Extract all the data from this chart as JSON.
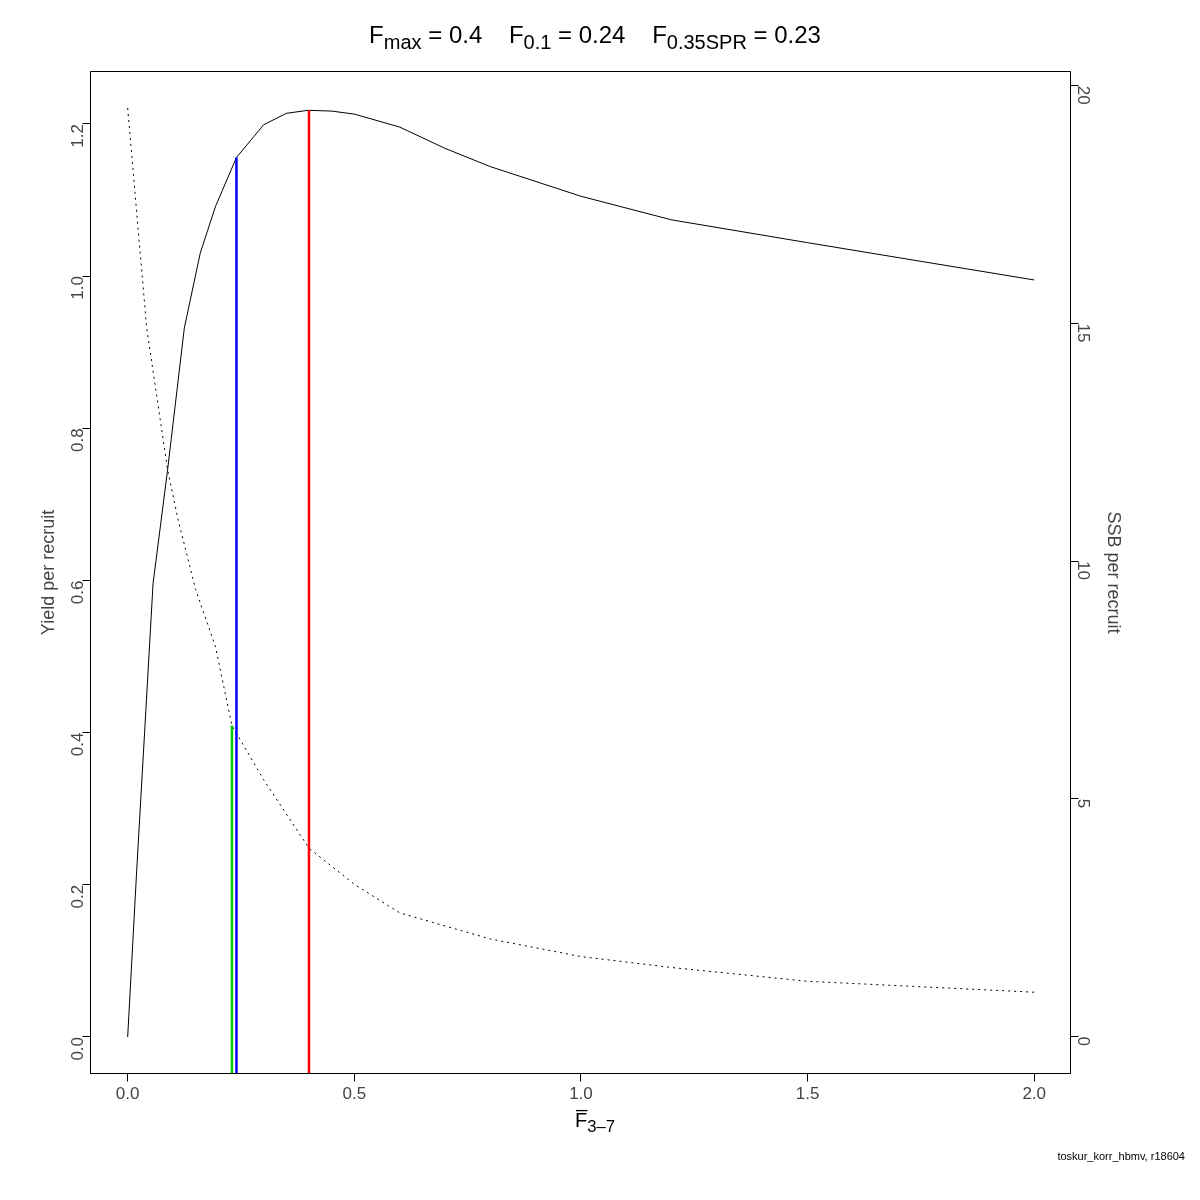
{
  "chart_data": {
    "type": "line",
    "title": "F$_{max}$ = 0.4     F$_{0.1}$ = 0.24     F$_{0.35SPR}$ = 0.23",
    "xlabel": "F̅$_{3–7}$",
    "ylabel": "Yield per recruit",
    "y2label": "SSB per recruit",
    "annotations": [
      "toskur_korr_hbmv, r18604"
    ],
    "xlim": [
      -0.082,
      2.08
    ],
    "xticks": [
      {
        "value": 0,
        "label": "0.0"
      },
      0.5,
      {
        "value": 1,
        "label": "1.0"
      },
      1.5,
      {
        "value": 2,
        "label": "2.0"
      }
    ],
    "ylim": [
      -0.048,
      1.269
    ],
    "yticks": [
      {
        "value": 0,
        "label": "0.0"
      },
      0.2,
      0.4,
      0.6,
      0.8,
      {
        "value": 1,
        "label": "1.0"
      },
      1.2
    ],
    "y2lim": [
      -0.78,
      20.3
    ],
    "y2ticks": [
      0,
      5,
      10,
      15,
      20
    ],
    "grid": false,
    "marker": "none",
    "series": [
      {
        "color": "#000000",
        "line_style": "solid",
        "x": [
          0,
          0.02,
          0.04,
          0.056,
          0.088,
          0.125,
          0.16,
          0.194,
          0.24,
          0.3,
          0.35,
          0.398,
          0.45,
          0.5,
          0.6,
          0.7,
          0.8,
          1.0,
          1.2,
          1.5,
          2.0
        ],
        "values": [
          0,
          0.22,
          0.428,
          0.596,
          0.745,
          0.932,
          1.03,
          1.092,
          1.156,
          1.199,
          1.214,
          1.218,
          1.217,
          1.213,
          1.196,
          1.168,
          1.144,
          1.105,
          1.074,
          1.044,
          0.995
        ]
      },
      {
        "color": "#000000",
        "line_style": "dotted",
        "axis": "y2",
        "x": [
          0,
          0.042,
          0.088,
          0.111,
          0.15,
          0.194,
          0.23,
          0.3,
          0.4,
          0.5,
          0.6,
          0.8,
          1.0,
          1.2,
          1.5,
          2.0
        ],
        "values": [
          19.53,
          14.9,
          11.93,
          10.88,
          9.4,
          8.19,
          6.54,
          5.4,
          3.96,
          3.2,
          2.6,
          2.05,
          1.68,
          1.45,
          1.16,
          0.93
        ]
      },
      {
        "color": "#ff0000",
        "line_style": "solid",
        "x": [
          0.4,
          0.4
        ],
        "values": [
          -0.048,
          1.218
        ]
      },
      {
        "color": "#0000ff",
        "line_style": "solid",
        "x": [
          0.24,
          0.24
        ],
        "values": [
          -0.048,
          1.156
        ]
      },
      {
        "color": "#00cd00",
        "line_style": "solid",
        "axis": "y2",
        "x": [
          0.23,
          0.23
        ],
        "values": [
          -0.78,
          6.54
        ]
      }
    ]
  }
}
